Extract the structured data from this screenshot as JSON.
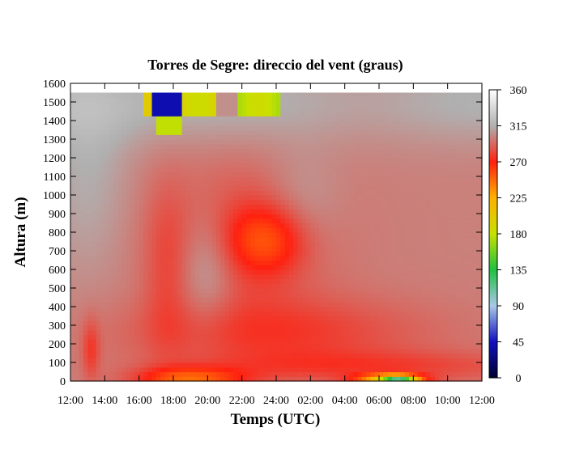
{
  "chart_data": {
    "type": "heatmap",
    "title": "Torres de Segre: direccio del vent (graus)",
    "xlabel": "Temps (UTC)",
    "ylabel": "Altura (m)",
    "x_ticks": [
      "12:00",
      "14:00",
      "16:00",
      "18:00",
      "20:00",
      "22:00",
      "24:00",
      "02:00",
      "04:00",
      "06:00",
      "08:00",
      "10:00",
      "12:00"
    ],
    "y_ticks": [
      "0",
      "100",
      "200",
      "300",
      "400",
      "500",
      "600",
      "700",
      "800",
      "900",
      "1000",
      "1100",
      "1200",
      "1300",
      "1400",
      "1500",
      "1600"
    ],
    "xlim_hours": [
      0,
      24
    ],
    "ylim": [
      0,
      1600
    ],
    "data_top": 1550,
    "colorbar": {
      "range": [
        0,
        360
      ],
      "ticks": [
        "0",
        "45",
        "90",
        "135",
        "180",
        "225",
        "270",
        "315",
        "360"
      ],
      "stops": [
        {
          "value": 0,
          "color": "#000030"
        },
        {
          "value": 45,
          "color": "#1010c0"
        },
        {
          "value": 90,
          "color": "#a8c8e8"
        },
        {
          "value": 135,
          "color": "#20c040"
        },
        {
          "value": 180,
          "color": "#c8e000"
        },
        {
          "value": 225,
          "color": "#ffb000"
        },
        {
          "value": 270,
          "color": "#ff2010"
        },
        {
          "value": 315,
          "color": "#b0b0b0"
        },
        {
          "value": 360,
          "color": "#ffffff"
        }
      ]
    },
    "grid": false,
    "legend": "colorbar-right"
  }
}
